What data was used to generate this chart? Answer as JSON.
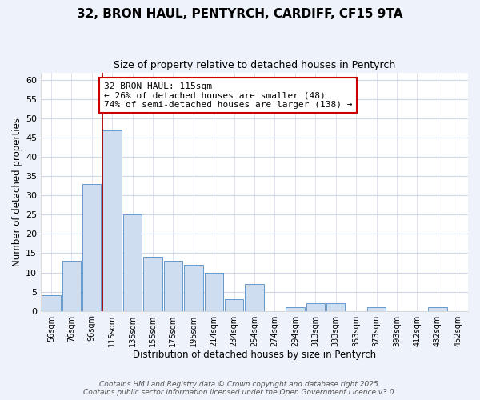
{
  "title": "32, BRON HAUL, PENTYRCH, CARDIFF, CF15 9TA",
  "subtitle": "Size of property relative to detached houses in Pentyrch",
  "xlabel": "Distribution of detached houses by size in Pentyrch",
  "ylabel": "Number of detached properties",
  "bar_color": "#cfddf0",
  "bar_edge_color": "#6699cc",
  "categories": [
    "56sqm",
    "76sqm",
    "96sqm",
    "115sqm",
    "135sqm",
    "155sqm",
    "175sqm",
    "195sqm",
    "214sqm",
    "234sqm",
    "254sqm",
    "274sqm",
    "294sqm",
    "313sqm",
    "333sqm",
    "353sqm",
    "373sqm",
    "393sqm",
    "412sqm",
    "432sqm",
    "452sqm"
  ],
  "values": [
    4,
    13,
    33,
    47,
    25,
    14,
    13,
    12,
    10,
    3,
    7,
    0,
    1,
    2,
    2,
    0,
    1,
    0,
    0,
    1,
    0
  ],
  "ylim": [
    0,
    62
  ],
  "yticks": [
    0,
    5,
    10,
    15,
    20,
    25,
    30,
    35,
    40,
    45,
    50,
    55,
    60
  ],
  "vline_color": "#aa0000",
  "annotation_line1": "32 BRON HAUL: 115sqm",
  "annotation_line2": "← 26% of detached houses are smaller (48)",
  "annotation_line3": "74% of semi-detached houses are larger (138) →",
  "annotation_box_color": "#ffffff",
  "annotation_box_edge": "#cc0000",
  "footer_line1": "Contains HM Land Registry data © Crown copyright and database right 2025.",
  "footer_line2": "Contains public sector information licensed under the Open Government Licence v3.0.",
  "bg_color": "#eef2fa",
  "plot_bg_color": "#ffffff",
  "grid_color": "#d0d8e8"
}
